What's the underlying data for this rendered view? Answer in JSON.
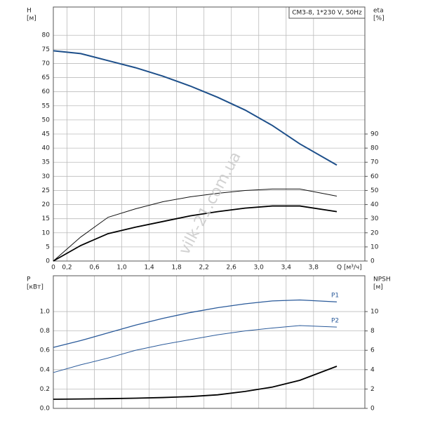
{
  "chart_data": [
    {
      "type": "line",
      "annotation": "CM3-8, 1*230 V, 50Hz",
      "watermark": "vilk-21.com.ua",
      "x_label": "Q [м³/ч]",
      "y_label": "H",
      "y_unit": "[м]",
      "y2_label": "eta",
      "y2_unit": "[%]",
      "xlim": [
        0,
        4.55
      ],
      "xticks": [
        0,
        {
          "value": 0.2,
          "label": "0,2"
        },
        {
          "value": 0.6,
          "label": "0,6"
        },
        {
          "value": 1.0,
          "label": "1,0"
        },
        {
          "value": 1.4,
          "label": "1,4"
        },
        {
          "value": 1.8,
          "label": "1,8"
        },
        {
          "value": 2.2,
          "label": "2,2"
        },
        {
          "value": 2.6,
          "label": "2,6"
        },
        {
          "value": 3.0,
          "label": "3,0"
        },
        {
          "value": 3.4,
          "label": "3,4"
        },
        {
          "value": 3.8,
          "label": "3,8"
        }
      ],
      "ylim": [
        0,
        90
      ],
      "yticks": [
        0,
        5,
        10,
        15,
        20,
        25,
        30,
        35,
        40,
        45,
        50,
        55,
        60,
        65,
        70,
        75,
        80
      ],
      "y2lim": [
        0,
        180
      ],
      "y2ticks": [
        0,
        10,
        20,
        30,
        40,
        50,
        60,
        70,
        80,
        90
      ],
      "grid": true,
      "x": [
        0,
        0.4,
        0.8,
        1.2,
        1.6,
        2.0,
        2.4,
        2.8,
        3.2,
        3.6,
        4.14
      ],
      "series": [
        {
          "color": "#1d4f8a",
          "values": [
            74.5,
            73.5,
            71,
            68.5,
            65.5,
            62,
            58,
            53.5,
            48,
            41.5,
            34
          ]
        },
        {
          "color": "#111111",
          "axis": "y2",
          "values": [
            0,
            17,
            31,
            37,
            42,
            45.5,
            48,
            50,
            51,
            51,
            46
          ]
        },
        {
          "color": "#000000",
          "axis": "y2",
          "values": [
            0,
            11,
            19.4,
            24,
            28,
            32,
            35,
            37.5,
            39,
            39,
            35
          ]
        }
      ]
    },
    {
      "type": "line",
      "y_label": "P",
      "y_unit": "[кВт]",
      "y2_label": "NPSH",
      "y2_unit": "[м]",
      "xlim": [
        0,
        4.55
      ],
      "xticks": [
        0,
        0.2,
        0.6,
        1.0,
        1.4,
        1.8,
        2.2,
        2.6,
        3.0,
        3.4,
        3.8
      ],
      "ylim": [
        0,
        1.37
      ],
      "yticks": [
        {
          "value": 0,
          "label": "0.0"
        },
        0.2,
        0.4,
        0.6,
        0.8,
        {
          "value": 1.0,
          "label": "1.0"
        }
      ],
      "y2lim": [
        0,
        13.7
      ],
      "y2ticks": [
        0,
        2,
        4,
        6,
        8,
        10
      ],
      "grid": true,
      "x": [
        0,
        0.4,
        0.8,
        1.2,
        1.6,
        2.0,
        2.4,
        2.8,
        3.2,
        3.6,
        4.14
      ],
      "series": [
        {
          "name": "P1",
          "color": "#2a5a9a",
          "values": [
            0.63,
            0.7,
            0.78,
            0.86,
            0.93,
            0.99,
            1.04,
            1.08,
            1.11,
            1.12,
            1.1
          ]
        },
        {
          "name": "P2",
          "color": "#2a5a9a",
          "values": [
            0.37,
            0.45,
            0.52,
            0.6,
            0.66,
            0.71,
            0.76,
            0.8,
            0.83,
            0.855,
            0.84
          ]
        },
        {
          "color": "#000000",
          "axis": "y2",
          "values": [
            0.94,
            0.97,
            1.0,
            1.05,
            1.12,
            1.22,
            1.4,
            1.75,
            2.2,
            2.9,
            4.35
          ]
        }
      ]
    }
  ]
}
